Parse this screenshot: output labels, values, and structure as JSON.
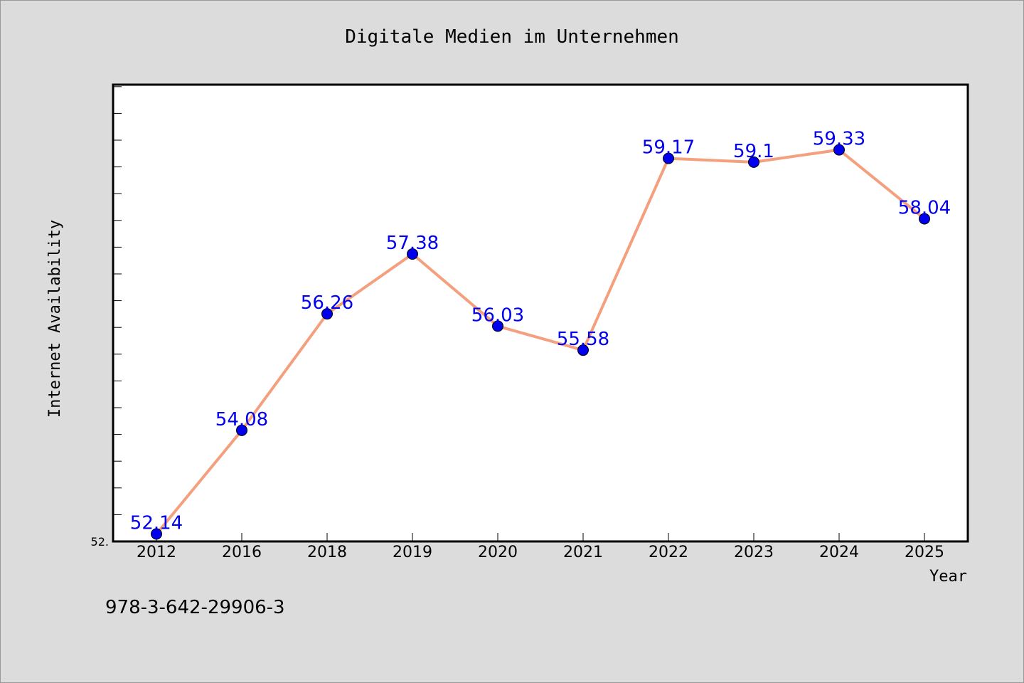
{
  "chart_data": {
    "type": "line",
    "title": "Digitale Medien im Unternehmen",
    "xlabel": "Year",
    "ylabel": "Internet Availability",
    "categories": [
      "2012",
      "2016",
      "2018",
      "2019",
      "2020",
      "2021",
      "2022",
      "2023",
      "2024",
      "2025"
    ],
    "values": [
      52.14,
      54.08,
      56.26,
      57.38,
      56.03,
      55.58,
      59.17,
      59.1,
      59.33,
      58.04
    ],
    "data_labels": [
      "52.14",
      "54.08",
      "56.26",
      "57.38",
      "56.03",
      "55.58",
      "59.17",
      "59.1",
      "59.33",
      "58.04"
    ],
    "y_tick_label": "52.",
    "ylim": [
      52.0,
      60.55
    ],
    "grid": false,
    "legend": "none",
    "colors": {
      "line": "#f4a07e",
      "marker": "#0000ee",
      "data_label": "#0000ee",
      "plot_background": "#ffffff",
      "page_background": "#dcdcdc"
    }
  },
  "footer": {
    "isbn": "978-3-642-29906-3"
  }
}
